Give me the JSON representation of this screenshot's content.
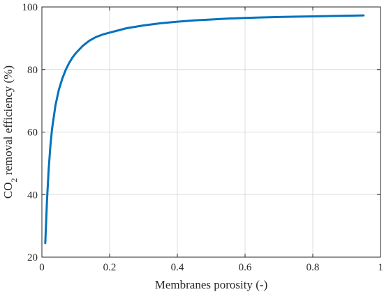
{
  "chart_data": {
    "type": "line",
    "xlabel": "Membranes porosity (-)",
    "ylabel": "CO2 removal efficiency (%)",
    "ylabel_parts": {
      "pre": "CO",
      "sub": "2",
      "post": " removal efficiency (%)"
    },
    "xlim": [
      0,
      1
    ],
    "ylim": [
      20,
      100
    ],
    "xticks": [
      0,
      0.2,
      0.4,
      0.6,
      0.8,
      1
    ],
    "xtick_labels": [
      "0",
      "0.2",
      "0.4",
      "0.6",
      "0.8",
      "1"
    ],
    "yticks": [
      20,
      40,
      60,
      80,
      100
    ],
    "ytick_labels": [
      "20",
      "40",
      "60",
      "80",
      "100"
    ],
    "grid": true,
    "series": [
      {
        "color": "#0072BD",
        "x": [
          0.01,
          0.015,
          0.02,
          0.025,
          0.03,
          0.04,
          0.05,
          0.06,
          0.07,
          0.08,
          0.09,
          0.1,
          0.12,
          0.14,
          0.16,
          0.18,
          0.2,
          0.25,
          0.3,
          0.35,
          0.4,
          0.45,
          0.5,
          0.55,
          0.6,
          0.65,
          0.7,
          0.75,
          0.8,
          0.85,
          0.9,
          0.95
        ],
        "y": [
          24.5,
          38,
          48,
          55.5,
          61,
          68.5,
          73.5,
          77,
          79.8,
          82,
          83.8,
          85.2,
          87.5,
          89.2,
          90.4,
          91.2,
          91.8,
          93.2,
          94.1,
          94.8,
          95.3,
          95.7,
          96.0,
          96.3,
          96.5,
          96.65,
          96.8,
          96.9,
          97.0,
          97.1,
          97.2,
          97.3
        ]
      }
    ]
  }
}
